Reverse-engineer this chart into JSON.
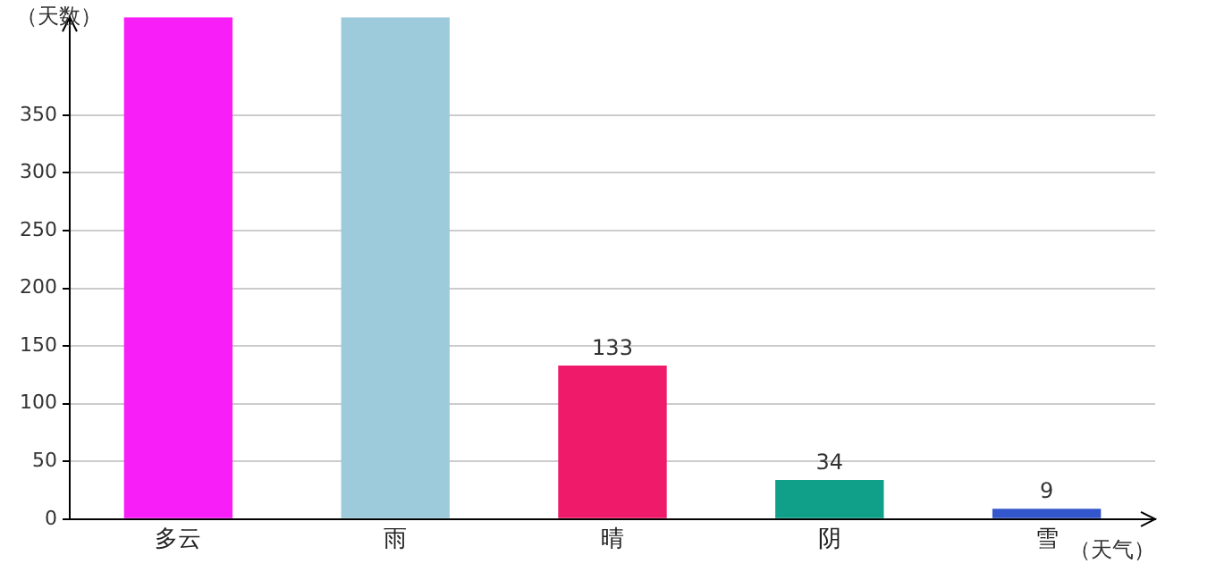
{
  "chart_data": {
    "type": "bar",
    "ylabel": "（天数）",
    "xlabel": "（天气）",
    "categories": [
      "多云",
      "雨",
      "晴",
      "阴",
      "雪"
    ],
    "values": [
      435,
      435,
      133,
      34,
      9
    ],
    "colors": [
      "#f81ef8",
      "#9ecbdb",
      "#f01a6a",
      "#10a08a",
      "#3456cc"
    ],
    "value_labels": [
      null,
      null,
      "133",
      "34",
      "9"
    ],
    "ylim": [
      0,
      435
    ],
    "yticks": [
      0,
      50,
      100,
      150,
      200,
      250,
      300,
      350
    ],
    "grid": "y",
    "legend": false
  }
}
